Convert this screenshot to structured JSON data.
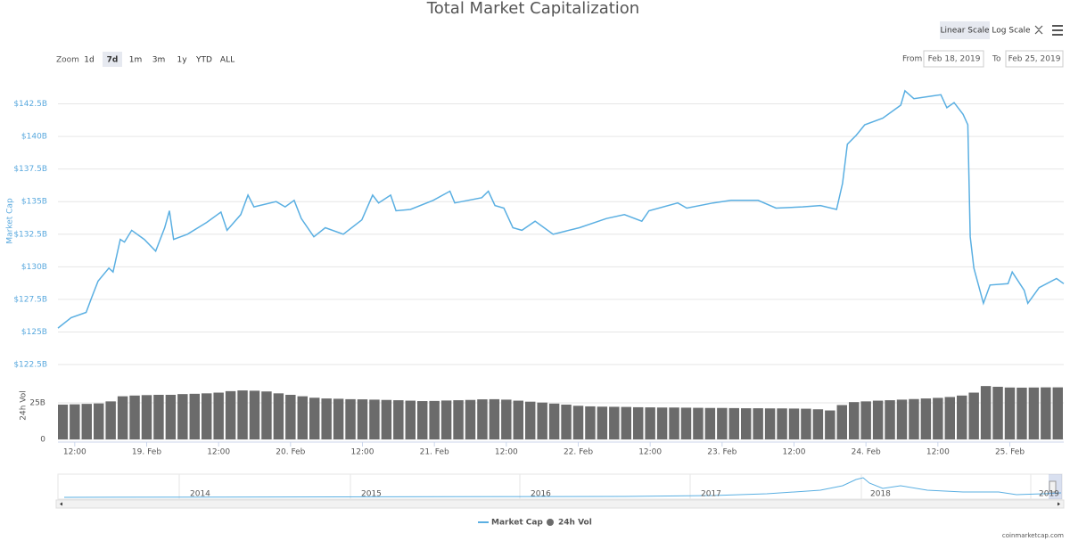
{
  "toolbar": {
    "scale_buttons": [
      "Linear Scale",
      "Log Scale"
    ],
    "zoom_label": "Zoom",
    "zoom_buttons": [
      "1d",
      "7d",
      "1m",
      "3m",
      "1y",
      "YTD",
      "ALL"
    ],
    "from_label": "From",
    "from": "Feb 18, 2019",
    "to_label": "To",
    "to": "Feb 25, 2019"
  },
  "navigator": {
    "labels": [
      "2014",
      "2015",
      "2016",
      "2017",
      "2018",
      "2019"
    ]
  },
  "credit": "coinmarketcap.com",
  "chart_data": [
    {
      "type": "line",
      "title": "Total Market Capitalization",
      "y_label": "Market Cap",
      "x": [
        9.2,
        11.4,
        13.9,
        14.8,
        15.9,
        17.7,
        18.4,
        19.6,
        20.3,
        21.5,
        23.6,
        25.5,
        27.0,
        27.8,
        28.5,
        30.8,
        34.0,
        36.4,
        37.4,
        39.7,
        40.9,
        41.9,
        45.6,
        47.1,
        48.6,
        49.8,
        51.9,
        53.8,
        56.8,
        59.9,
        61.7,
        62.7,
        64.7,
        65.6,
        68.0,
        71.8,
        74.6,
        75.4,
        79.9,
        81.0,
        82.1,
        83.6,
        85.1,
        86.6,
        88.8,
        91.8,
        96.2,
        100.7,
        103.7,
        106.6,
        107.8,
        112.6,
        114.1,
        118.5,
        121.5,
        126.0,
        129.0,
        133.4,
        136.4,
        139.1,
        140.1,
        140.9,
        142.4,
        143.8,
        146.8,
        149.8,
        150.5,
        152.0,
        155.0,
        156.5,
        157.5,
        158.7,
        160.2,
        161.0,
        161.4,
        162.0,
        163.6,
        164.7,
        167.7,
        168.4,
        170.4,
        171.0,
        172.9,
        175.8,
        177.0
      ],
      "series": [
        {
          "name": "Market Cap",
          "color": "#5aafe2",
          "values": [
            125.3,
            126.1,
            126.5,
            127.6,
            128.9,
            129.9,
            129.6,
            132.1,
            131.9,
            132.8,
            132.1,
            131.2,
            133.0,
            134.3,
            132.1,
            132.5,
            133.4,
            134.2,
            132.8,
            134.0,
            135.5,
            134.6,
            135.0,
            134.6,
            135.1,
            133.7,
            132.3,
            133.0,
            132.5,
            133.6,
            135.5,
            134.9,
            135.5,
            134.3,
            134.4,
            135.1,
            135.8,
            134.9,
            135.3,
            135.8,
            134.7,
            134.5,
            133.0,
            132.8,
            133.5,
            132.5,
            133.0,
            133.7,
            134.0,
            133.5,
            134.3,
            134.9,
            134.5,
            134.9,
            135.1,
            135.1,
            134.5,
            134.6,
            134.7,
            134.4,
            136.4,
            139.4,
            140.1,
            140.9,
            141.4,
            142.4,
            143.5,
            142.9,
            143.1,
            143.2,
            142.2,
            142.6,
            141.7,
            140.9,
            132.3,
            129.9,
            127.2,
            128.6,
            128.7,
            129.6,
            128.2,
            127.2,
            128.4,
            129.1,
            128.7
          ]
        }
      ],
      "xlim": [
        9.2,
        177
      ],
      "ylim": [
        122.5,
        145
      ],
      "yticks": [
        {
          "value": 122.5,
          "label": "$122.5B"
        },
        {
          "value": 125,
          "label": "$125B"
        },
        {
          "value": 127.5,
          "label": "$127.5B"
        },
        {
          "value": 130,
          "label": "$130B"
        },
        {
          "value": 132.5,
          "label": "$132.5B"
        },
        {
          "value": 135,
          "label": "$135B"
        },
        {
          "value": 137.5,
          "label": "$137.5B"
        },
        {
          "value": 140,
          "label": "$140B"
        },
        {
          "value": 142.5,
          "label": "$142.5B"
        }
      ],
      "grid": true
    },
    {
      "type": "bar",
      "y_label": "24h Vol",
      "x": [
        10,
        12,
        14,
        16,
        18,
        20,
        22,
        24,
        26,
        28,
        30,
        32,
        34,
        36,
        38,
        40,
        42,
        44,
        46,
        48,
        50,
        52,
        54,
        56,
        58,
        60,
        62,
        64,
        66,
        68,
        70,
        72,
        74,
        76,
        78,
        80,
        82,
        84,
        86,
        88,
        90,
        92,
        94,
        96,
        98,
        100,
        102,
        104,
        106,
        108,
        110,
        112,
        114,
        116,
        118,
        120,
        122,
        124,
        126,
        128,
        130,
        132,
        134,
        136,
        138,
        140,
        142,
        144,
        146,
        148,
        150,
        152,
        154,
        156,
        158,
        160,
        162,
        164,
        166,
        168,
        170,
        172,
        174,
        176
      ],
      "series": [
        {
          "name": "24h Vol",
          "color": "#6b6b6b",
          "values": [
            23.8,
            24,
            24.3,
            24.6,
            26,
            29.5,
            30,
            30.3,
            30.5,
            30.5,
            31,
            31.2,
            31.5,
            32,
            33,
            33.5,
            33.3,
            32.8,
            31.5,
            30.5,
            29.5,
            28.5,
            28,
            27.8,
            27.5,
            27.4,
            27.2,
            27,
            26.8,
            26.5,
            26.2,
            26.3,
            26.6,
            26.8,
            27,
            27.4,
            27.5,
            27.2,
            26.5,
            25.8,
            25.2,
            24.5,
            23.8,
            23,
            22.6,
            22.4,
            22.3,
            22.2,
            22,
            21.9,
            21.8,
            21.8,
            21.7,
            21.6,
            21.5,
            21.5,
            21.4,
            21.3,
            21.3,
            21.2,
            21.2,
            21.1,
            21,
            20.6,
            19.8,
            23.5,
            25.5,
            26,
            26.5,
            26.8,
            27.2,
            27.6,
            28,
            28.4,
            29,
            30,
            32,
            36.5,
            36,
            35.5,
            35.4,
            35.5,
            35.6,
            35.6
          ]
        }
      ],
      "xlim": [
        9.2,
        177
      ],
      "ylim": [
        0,
        50
      ],
      "yticks": [
        0,
        {
          "value": 25,
          "label": "25B"
        }
      ],
      "xticks": [
        {
          "value": 12,
          "label": "12:00"
        },
        {
          "value": 24,
          "label": "19. Feb"
        },
        {
          "value": 36,
          "label": "12:00"
        },
        {
          "value": 48,
          "label": "20. Feb"
        },
        {
          "value": 60,
          "label": "12:00"
        },
        {
          "value": 72,
          "label": "21. Feb"
        },
        {
          "value": 84,
          "label": "12:00"
        },
        {
          "value": 96,
          "label": "22. Feb"
        },
        {
          "value": 108,
          "label": "12:00"
        },
        {
          "value": 120,
          "label": "23. Feb"
        },
        {
          "value": 132,
          "label": "12:00"
        },
        {
          "value": 144,
          "label": "24. Feb"
        },
        {
          "value": 156,
          "label": "12:00"
        },
        {
          "value": 168,
          "label": "25. Feb"
        }
      ]
    }
  ]
}
